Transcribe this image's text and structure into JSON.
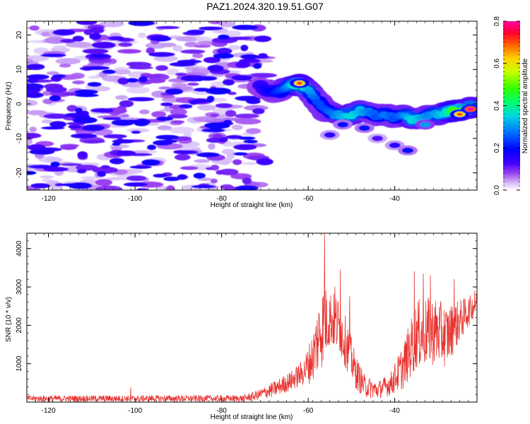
{
  "title": "PAZ1.2024.320.19.51.G07",
  "colors": {
    "snr_line": "#e8332f",
    "frame": "#000000",
    "spectrogram_scale": [
      "#ffffff",
      "#c9a8f5",
      "#8a2be2",
      "#2a00ff",
      "#0000ff",
      "#0080ff",
      "#00e0e0",
      "#00ff80",
      "#40ff00",
      "#c0ff00",
      "#ffd000",
      "#ff6000",
      "#ff0040",
      "#ff00a0"
    ]
  },
  "chart_data": [
    {
      "type": "heatmap",
      "name": "spectrogram",
      "xlabel": "Height of straight line (km)",
      "ylabel": "Frequency (Hz)",
      "xlim": [
        -125,
        -21
      ],
      "ylim": [
        -25,
        24
      ],
      "xticks": [
        -120,
        -100,
        -80,
        -60,
        -40
      ],
      "yticks": [
        -20,
        -10,
        0,
        10,
        20
      ],
      "colorbar": {
        "label": "Normalized spectral amplitude",
        "range": [
          0.0,
          0.8
        ],
        "ticks": [
          "0.0",
          "0.2",
          "0.4",
          "0.6",
          "0.8"
        ]
      },
      "noise_region": {
        "x_range": [
          -125,
          -70
        ],
        "y_range": [
          -25,
          24
        ],
        "amplitude_range": [
          0.02,
          0.18
        ]
      },
      "signal_ridge": [
        {
          "x": -71,
          "y": 5,
          "amp": 0.2
        },
        {
          "x": -68,
          "y": 3,
          "amp": 0.25
        },
        {
          "x": -66,
          "y": 4,
          "amp": 0.3
        },
        {
          "x": -64,
          "y": 5.5,
          "amp": 0.4
        },
        {
          "x": -62,
          "y": 5.5,
          "amp": 0.55
        },
        {
          "x": -60,
          "y": 4,
          "amp": 0.4
        },
        {
          "x": -58,
          "y": 1,
          "amp": 0.3
        },
        {
          "x": -56,
          "y": -2,
          "amp": 0.3
        },
        {
          "x": -54,
          "y": -3,
          "amp": 0.35
        },
        {
          "x": -52,
          "y": -3.5,
          "amp": 0.4
        },
        {
          "x": -50,
          "y": -3,
          "amp": 0.45
        },
        {
          "x": -48,
          "y": -2,
          "amp": 0.4
        },
        {
          "x": -46,
          "y": -2.5,
          "amp": 0.35
        },
        {
          "x": -44,
          "y": -3.5,
          "amp": 0.3
        },
        {
          "x": -42,
          "y": -3,
          "amp": 0.35
        },
        {
          "x": -40,
          "y": -4,
          "amp": 0.3
        },
        {
          "x": -38,
          "y": -3,
          "amp": 0.35
        },
        {
          "x": -36,
          "y": -4.5,
          "amp": 0.45
        },
        {
          "x": -34,
          "y": -4,
          "amp": 0.4
        },
        {
          "x": -32,
          "y": -3,
          "amp": 0.35
        },
        {
          "x": -30,
          "y": -3,
          "amp": 0.4
        },
        {
          "x": -28,
          "y": -2.5,
          "amp": 0.45
        },
        {
          "x": -26,
          "y": -2,
          "amp": 0.65
        },
        {
          "x": -24,
          "y": -1.5,
          "amp": 0.55
        },
        {
          "x": -22,
          "y": -1,
          "amp": 0.45
        }
      ],
      "secondary_blobs": [
        {
          "x": -62,
          "y": 6,
          "amp": 0.6
        },
        {
          "x": -55,
          "y": -9,
          "amp": 0.15
        },
        {
          "x": -52,
          "y": -6,
          "amp": 0.2
        },
        {
          "x": -47,
          "y": -7,
          "amp": 0.2
        },
        {
          "x": -44,
          "y": -10,
          "amp": 0.12
        },
        {
          "x": -40,
          "y": -12,
          "amp": 0.15
        },
        {
          "x": -37,
          "y": -13.5,
          "amp": 0.2
        },
        {
          "x": -33,
          "y": -6,
          "amp": 0.3
        },
        {
          "x": -25,
          "y": -3,
          "amp": 0.6
        },
        {
          "x": -22.5,
          "y": -1.5,
          "amp": 0.7
        }
      ]
    },
    {
      "type": "line",
      "name": "snr",
      "xlabel": "Height of straight line (km)",
      "ylabel": "SNR (10 * v/v)",
      "xlim": [
        -125,
        -21
      ],
      "ylim": [
        0,
        4400
      ],
      "xticks": [
        -120,
        -100,
        -80,
        -60,
        -40
      ],
      "yticks": [
        1000,
        2000,
        3000,
        4000
      ],
      "envelope": [
        {
          "x": -125,
          "base": 60,
          "spread": 160
        },
        {
          "x": -75,
          "base": 60,
          "spread": 170
        },
        {
          "x": -72,
          "base": 120,
          "spread": 250
        },
        {
          "x": -68,
          "base": 250,
          "spread": 400
        },
        {
          "x": -64,
          "base": 450,
          "spread": 500
        },
        {
          "x": -61,
          "base": 650,
          "spread": 700
        },
        {
          "x": -59,
          "base": 900,
          "spread": 1300
        },
        {
          "x": -57,
          "base": 1500,
          "spread": 2200
        },
        {
          "x": -55,
          "base": 1900,
          "spread": 1500
        },
        {
          "x": -53,
          "base": 1700,
          "spread": 1500
        },
        {
          "x": -51,
          "base": 1200,
          "spread": 1300
        },
        {
          "x": -49,
          "base": 600,
          "spread": 900
        },
        {
          "x": -47,
          "base": 300,
          "spread": 600
        },
        {
          "x": -44,
          "base": 220,
          "spread": 450
        },
        {
          "x": -41,
          "base": 350,
          "spread": 600
        },
        {
          "x": -38,
          "base": 700,
          "spread": 1200
        },
        {
          "x": -35,
          "base": 1400,
          "spread": 1800
        },
        {
          "x": -31,
          "base": 1500,
          "spread": 1800
        },
        {
          "x": -28,
          "base": 1400,
          "spread": 1600
        },
        {
          "x": -25,
          "base": 1900,
          "spread": 1100
        },
        {
          "x": -21,
          "base": 2500,
          "spread": 500
        }
      ],
      "peaks": [
        {
          "x": -56.2,
          "y": 4400
        },
        {
          "x": -52.6,
          "y": 3450
        },
        {
          "x": -50.4,
          "y": 2750
        },
        {
          "x": -53.8,
          "y": 3000
        },
        {
          "x": -35.5,
          "y": 3400
        },
        {
          "x": -33.4,
          "y": 3350
        },
        {
          "x": -31.8,
          "y": 3300
        },
        {
          "x": -26.3,
          "y": 3200
        },
        {
          "x": -21.5,
          "y": 2900
        },
        {
          "x": -101,
          "y": 380
        }
      ]
    }
  ]
}
